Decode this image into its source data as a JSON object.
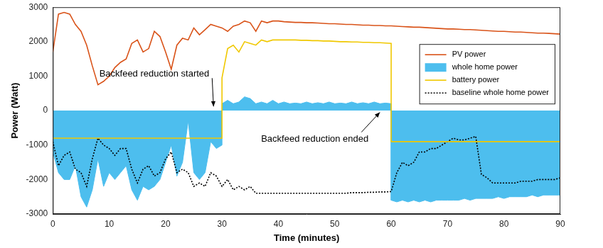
{
  "chart_data": {
    "type": "line",
    "xlabel": "Time (minutes)",
    "ylabel": "Power (Watt)",
    "xlim": [
      0,
      90
    ],
    "xticks": [
      0,
      10,
      20,
      30,
      40,
      50,
      60,
      70,
      80,
      90
    ],
    "ylim": [
      -3000,
      3000
    ],
    "yticks": [
      -3000,
      -2000,
      -1000,
      0,
      1000,
      2000,
      3000
    ],
    "grid": false,
    "legend": "upper right",
    "x": [
      0,
      1,
      2,
      3,
      4,
      5,
      6,
      7,
      8,
      9,
      10,
      11,
      12,
      13,
      14,
      15,
      16,
      17,
      18,
      19,
      20,
      21,
      22,
      23,
      24,
      25,
      26,
      27,
      28,
      29,
      30,
      30,
      31,
      32,
      33,
      34,
      35,
      36,
      37,
      38,
      39,
      40,
      41,
      42,
      43,
      44,
      45,
      46,
      47,
      48,
      49,
      50,
      51,
      52,
      53,
      54,
      55,
      56,
      57,
      58,
      59,
      60,
      60,
      61,
      62,
      63,
      64,
      65,
      66,
      67,
      68,
      69,
      70,
      71,
      72,
      73,
      74,
      75,
      76,
      77,
      78,
      79,
      80,
      81,
      82,
      83,
      84,
      85,
      86,
      87,
      88,
      89,
      90
    ],
    "series": [
      {
        "name": "PV power",
        "color": "#d95319",
        "line_style": "solid",
        "values": [
          1700,
          2800,
          2850,
          2800,
          2500,
          2300,
          1900,
          1300,
          750,
          850,
          1000,
          1250,
          1400,
          1500,
          1950,
          2050,
          1700,
          1800,
          2300,
          2150,
          1700,
          1200,
          1900,
          2100,
          2050,
          2400,
          2200,
          2350,
          2500,
          2450,
          2400,
          2400,
          2300,
          2450,
          2500,
          2600,
          2550,
          2300,
          2600,
          2550,
          2600,
          2600,
          2580,
          2570,
          2560,
          2560,
          2550,
          2550,
          2540,
          2530,
          2520,
          2520,
          2510,
          2500,
          2500,
          2490,
          2480,
          2480,
          2470,
          2470,
          2460,
          2460,
          2460,
          2450,
          2440,
          2430,
          2420,
          2420,
          2410,
          2400,
          2390,
          2380,
          2370,
          2370,
          2360,
          2350,
          2350,
          2340,
          2330,
          2320,
          2310,
          2300,
          2300,
          2290,
          2280,
          2280,
          2270,
          2260,
          2250,
          2250,
          2240,
          2230,
          2220
        ]
      },
      {
        "name": "whole home power",
        "color": "#4dbeee",
        "type": "area",
        "values": [
          -1200,
          -1800,
          -2000,
          -2000,
          -1600,
          -2500,
          -2800,
          -2300,
          -1400,
          -2200,
          -1800,
          -2000,
          -1800,
          -1600,
          -2300,
          -2600,
          -2200,
          -2300,
          -2200,
          -2000,
          -1500,
          -1000,
          -1900,
          -1500,
          -300,
          -1800,
          -2000,
          -1800,
          -900,
          -1100,
          -1000,
          200,
          300,
          200,
          250,
          400,
          350,
          200,
          250,
          200,
          300,
          200,
          250,
          200,
          220,
          200,
          250,
          200,
          230,
          200,
          250,
          200,
          220,
          200,
          250,
          200,
          230,
          200,
          250,
          200,
          220,
          200,
          -2600,
          -2650,
          -2600,
          -2650,
          -2600,
          -2650,
          -2600,
          -2650,
          -2600,
          -2600,
          -2600,
          -2600,
          -2600,
          -2550,
          -2600,
          -2550,
          -2550,
          -2550,
          -2550,
          -2500,
          -2550,
          -2500,
          -2500,
          -2500,
          -2500,
          -2450,
          -2500,
          -2450,
          -2450,
          -2450,
          -2450
        ]
      },
      {
        "name": "battery power",
        "color": "#f0c800",
        "line_style": "solid",
        "values": [
          -800,
          -800,
          -800,
          -800,
          -800,
          -800,
          -800,
          -800,
          -800,
          -800,
          -800,
          -800,
          -800,
          -800,
          -800,
          -800,
          -800,
          -800,
          -800,
          -800,
          -800,
          -800,
          -800,
          -800,
          -800,
          -800,
          -800,
          -800,
          -800,
          -800,
          -800,
          950,
          1800,
          1900,
          1700,
          2000,
          1950,
          1900,
          2050,
          2000,
          2050,
          2050,
          2050,
          2050,
          2050,
          2040,
          2040,
          2030,
          2030,
          2020,
          2020,
          2010,
          2000,
          2000,
          1990,
          1990,
          1980,
          1980,
          1970,
          1970,
          1960,
          1950,
          -900,
          -900,
          -900,
          -900,
          -900,
          -900,
          -900,
          -900,
          -900,
          -900,
          -900,
          -900,
          -900,
          -900,
          -900,
          -900,
          -900,
          -900,
          -900,
          -900,
          -900,
          -900,
          -900,
          -900,
          -900,
          -900,
          -900,
          -900,
          -900,
          -900,
          -900
        ]
      },
      {
        "name": "baseline whole home power",
        "color": "#000000",
        "line_style": "dotted",
        "values": [
          -900,
          -1600,
          -1300,
          -1200,
          -1700,
          -1800,
          -2200,
          -1400,
          -800,
          -1000,
          -1100,
          -1300,
          -1100,
          -1100,
          -1700,
          -2100,
          -1700,
          -1600,
          -1900,
          -1800,
          -1400,
          -1200,
          -1800,
          -1700,
          -1800,
          -2200,
          -2100,
          -2200,
          -1800,
          -1900,
          -2200,
          -2200,
          -2000,
          -2300,
          -2200,
          -2300,
          -2200,
          -2400,
          -2400,
          -2400,
          -2400,
          -2400,
          -2400,
          -2400,
          -2400,
          -2400,
          -2400,
          -2400,
          -2400,
          -2400,
          -2400,
          -2400,
          -2400,
          -2400,
          -2380,
          -2380,
          -2380,
          -2370,
          -2370,
          -2360,
          -2360,
          -2350,
          -2350,
          -1800,
          -1500,
          -1600,
          -1500,
          -1200,
          -1200,
          -1100,
          -1100,
          -1000,
          -900,
          -800,
          -850,
          -850,
          -800,
          -750,
          -1850,
          -1950,
          -2100,
          -2100,
          -2100,
          -2100,
          -2100,
          -2050,
          -2050,
          -2050,
          -2000,
          -2000,
          -2000,
          -2000,
          -1950
        ]
      }
    ],
    "annotations": [
      {
        "text": "Backfeed reduction started",
        "x": 28.5,
        "y": 120
      },
      {
        "text": "Backfeed reduction ended",
        "x": 58,
        "y": -50
      }
    ]
  }
}
